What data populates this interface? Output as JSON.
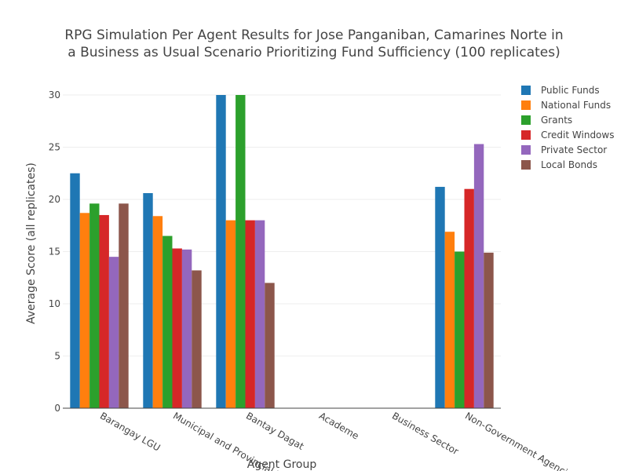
{
  "chart_data": {
    "type": "bar",
    "title_lines": [
      "RPG Simulation Per Agent Results for Jose Panganiban, Camarines Norte in",
      "a Business as Usual Scenario Prioritizing Fund Sufficiency (100 replicates)"
    ],
    "xlabel": "Agent Group",
    "ylabel": "Average Score (all replicates)",
    "ylim": [
      0,
      30
    ],
    "yticks": [
      0,
      5,
      10,
      15,
      20,
      25,
      30
    ],
    "grid": true,
    "legend_position": "top-right",
    "categories": [
      "Barangay LGU",
      "Municipal and Provincial LGU",
      "Bantay Dagat",
      "Academe",
      "Business Sector",
      "Non-Government Agencies"
    ],
    "series": [
      {
        "name": "Public Funds",
        "color": "#1f77b4",
        "values": [
          22.5,
          20.6,
          30,
          0,
          0,
          21.2
        ]
      },
      {
        "name": "National Funds",
        "color": "#ff7f0e",
        "values": [
          18.7,
          18.4,
          18,
          0,
          0,
          16.9
        ]
      },
      {
        "name": "Grants",
        "color": "#2ca02c",
        "values": [
          19.6,
          16.5,
          30,
          0,
          0,
          15.0
        ]
      },
      {
        "name": "Credit Windows",
        "color": "#d62728",
        "values": [
          18.5,
          15.3,
          18,
          0,
          0,
          21.0
        ]
      },
      {
        "name": "Private Sector",
        "color": "#9467bd",
        "values": [
          14.5,
          15.2,
          18,
          0,
          0,
          25.3
        ]
      },
      {
        "name": "Local Bonds",
        "color": "#8c564b",
        "values": [
          19.6,
          13.2,
          12,
          0,
          0,
          14.9
        ]
      }
    ]
  }
}
